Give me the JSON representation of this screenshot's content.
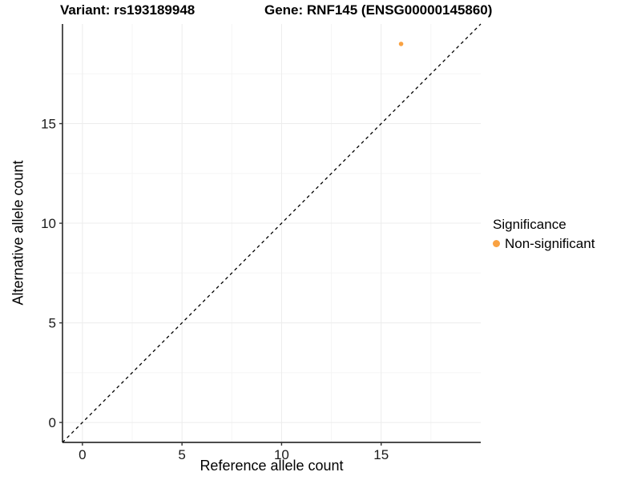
{
  "page": {
    "background": "#FFFFFF"
  },
  "chart_data": {
    "type": "scatter",
    "titles": {
      "left": "Variant: rs193189948",
      "right": "Gene: RNF145 (ENSG00000145860)"
    },
    "xlabel": "Reference allele count",
    "ylabel": "Alternative allele count",
    "xlim": [
      -1,
      20
    ],
    "ylim": [
      -1,
      20
    ],
    "xticks": [
      0,
      5,
      10,
      15
    ],
    "yticks": [
      0,
      5,
      10,
      15
    ],
    "xminor": [
      2.5,
      7.5,
      12.5,
      17.5
    ],
    "yminor": [
      2.5,
      7.5,
      12.5,
      17.5
    ],
    "grid": {
      "major": true,
      "minor": true,
      "background": "white"
    },
    "identity_line": {
      "slope": 1,
      "intercept": 0,
      "style": "dashed",
      "color": "#000000"
    },
    "points": [
      {
        "x": 16,
        "y": 19,
        "series": "Non-significant"
      }
    ],
    "legend": {
      "title": "Significance",
      "position": "right",
      "items": [
        {
          "label": "Non-significant",
          "color": "#F9A242",
          "marker": "circle"
        }
      ]
    },
    "colors": {
      "point": "#F9A242",
      "grid_major": "#ECECEC",
      "grid_minor": "#F5F5F5",
      "axis_line": "#333333",
      "tick_mark": "#333333",
      "tick_text": "#1A1A1A"
    }
  }
}
